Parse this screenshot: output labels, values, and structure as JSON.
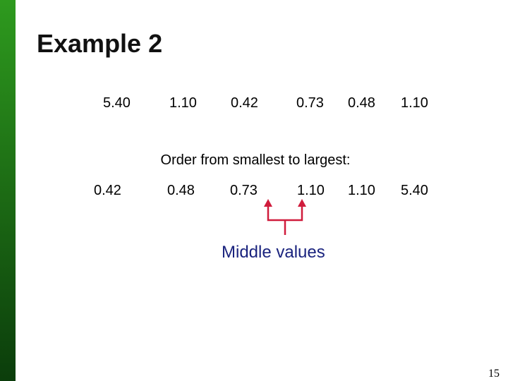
{
  "title": "Example 2",
  "original_values": [
    "5.40",
    "1.10",
    "0.42",
    "0.73",
    "0.48",
    "1.10"
  ],
  "instruction": "Order from smallest to largest:",
  "ordered_values": [
    "0.42",
    "0.48",
    "0.73",
    "1.10",
    "1.10",
    "5.40"
  ],
  "annotation": "Middle values",
  "page_number": "15"
}
